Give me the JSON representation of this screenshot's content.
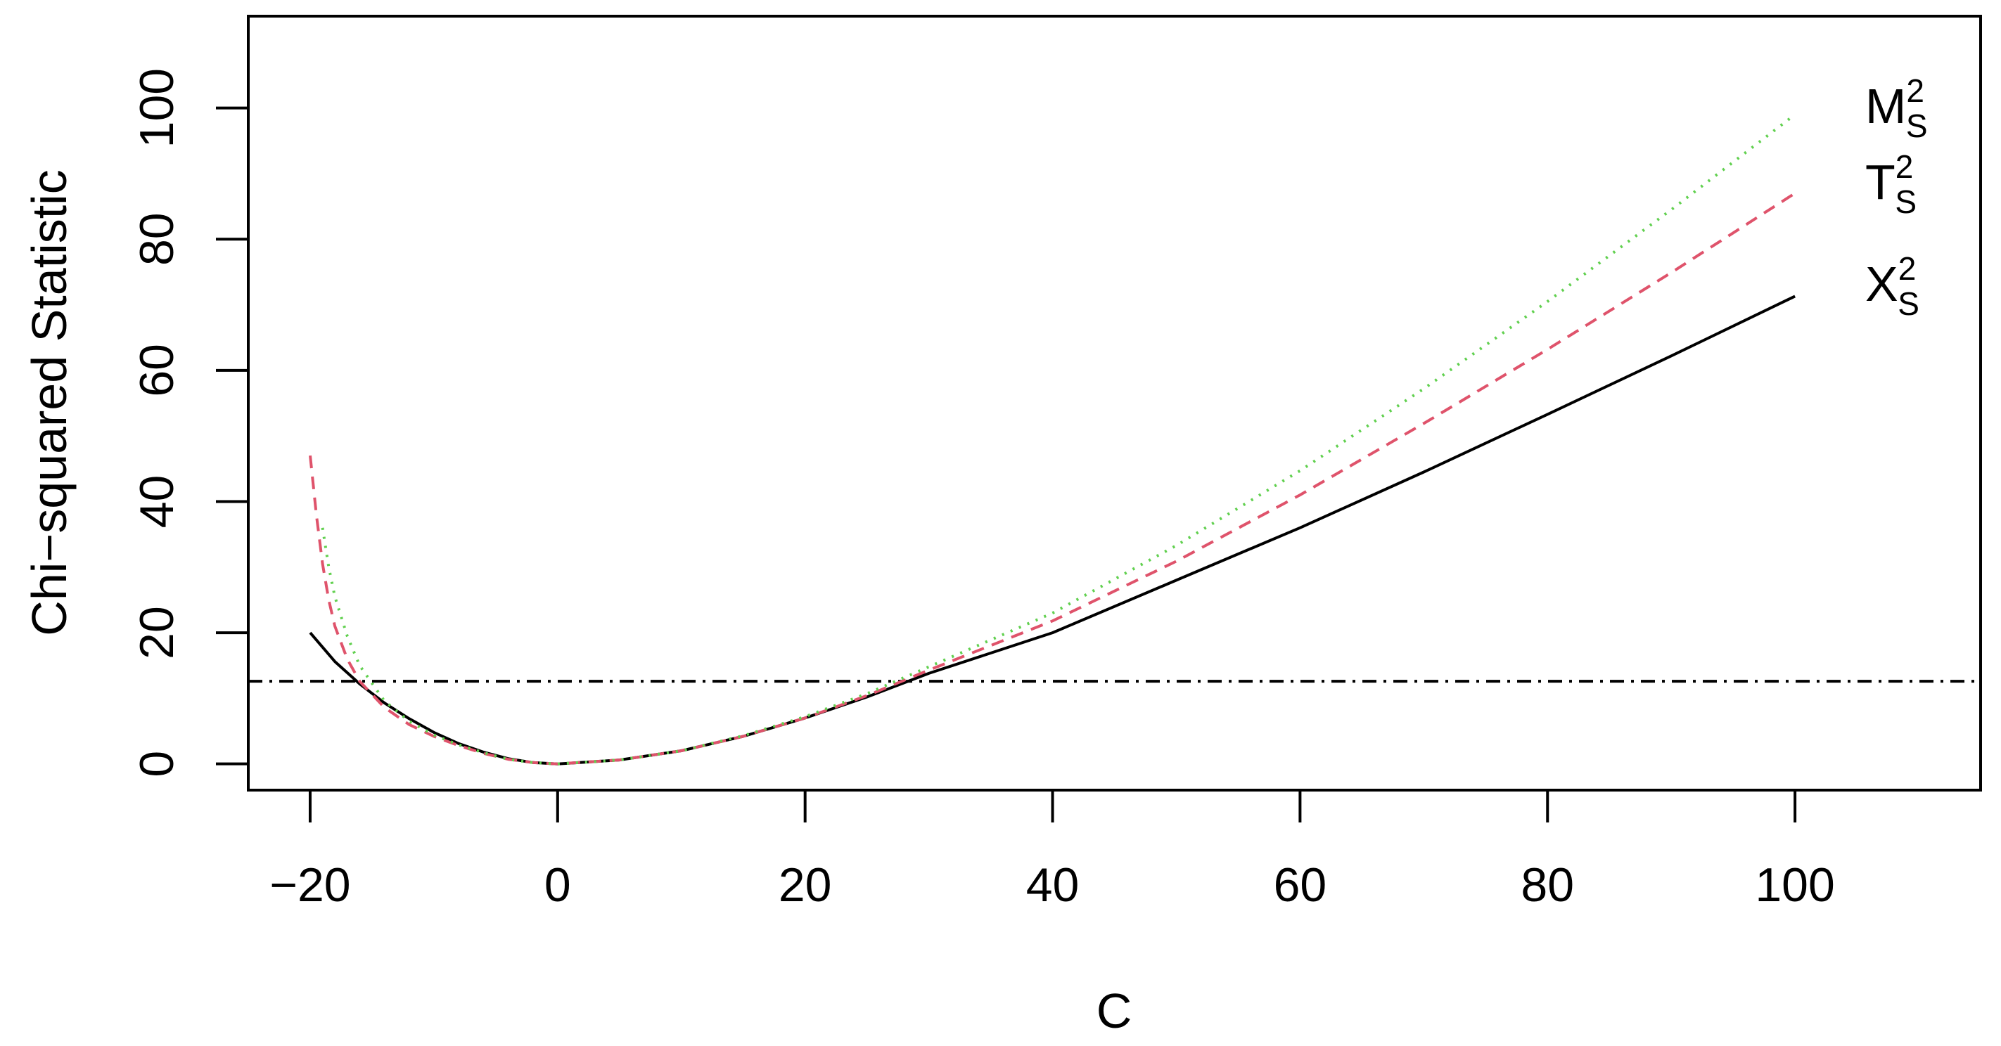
{
  "chart_data": {
    "type": "line",
    "title": "",
    "xlabel": "C",
    "ylabel": "Chi−squared Statistic",
    "xlim": [
      -25,
      115
    ],
    "ylim": [
      -4,
      114
    ],
    "xticks": [
      -20,
      0,
      20,
      40,
      60,
      80,
      100
    ],
    "xtick_labels": [
      "−20",
      "0",
      "20",
      "40",
      "60",
      "80",
      "100"
    ],
    "yticks": [
      0,
      20,
      40,
      60,
      80,
      100
    ],
    "ytick_labels": [
      "0",
      "20",
      "40",
      "60",
      "80",
      "100"
    ],
    "grid": false,
    "legend": "direct labels at right end of lines",
    "reference_line": {
      "y": 12.6,
      "style": "dot-dash",
      "color": "#000000"
    },
    "series": [
      {
        "name": "X",
        "label_sup": "2",
        "label_sub": "S",
        "color": "#000000",
        "style": "solid",
        "x": [
          -20,
          -18,
          -16,
          -14,
          -12,
          -10,
          -8,
          -6,
          -4,
          -2,
          0,
          5,
          10,
          15,
          20,
          25,
          30,
          40,
          50,
          60,
          70,
          80,
          90,
          100
        ],
        "y": [
          20.0,
          15.6,
          12.2,
          9.3,
          6.9,
          4.8,
          3.1,
          1.8,
          0.8,
          0.2,
          0,
          0.6,
          2.0,
          4.2,
          7.0,
          10.2,
          13.8,
          20.0,
          28.0,
          36.0,
          44.5,
          53.3,
          62.2,
          71.3
        ]
      },
      {
        "name": "T",
        "label_sup": "2",
        "label_sub": "S",
        "color": "#df536b",
        "style": "dashed",
        "x": [
          -20,
          -19.5,
          -19,
          -18.5,
          -18,
          -17,
          -16,
          -14,
          -12,
          -10,
          -8,
          -6,
          -4,
          -2,
          0,
          5,
          10,
          15,
          20,
          25,
          30,
          40,
          50,
          60,
          70,
          80,
          90,
          100
        ],
        "y": [
          47.0,
          38.0,
          30.5,
          25.0,
          21.0,
          16.0,
          12.6,
          8.6,
          6.0,
          4.2,
          2.8,
          1.6,
          0.7,
          0.2,
          0,
          0.6,
          2.0,
          4.2,
          7.0,
          10.4,
          14.3,
          21.8,
          30.9,
          41.0,
          51.9,
          63.2,
          74.9,
          87.0
        ]
      },
      {
        "name": "M",
        "label_sup": "2",
        "label_sub": "S",
        "color": "#61d04f",
        "style": "dotted",
        "x": [
          -19,
          -18.5,
          -18,
          -17,
          -16,
          -14,
          -12,
          -10,
          -8,
          -6,
          -4,
          -2,
          0,
          5,
          10,
          15,
          20,
          25,
          30,
          40,
          50,
          60,
          70,
          80,
          90,
          100
        ],
        "y": [
          36.0,
          30.0,
          25.5,
          19.5,
          15.0,
          9.6,
          6.5,
          4.4,
          2.9,
          1.7,
          0.7,
          0.2,
          0,
          0.6,
          2.0,
          4.3,
          7.2,
          10.7,
          14.8,
          23.0,
          33.3,
          44.7,
          57.2,
          70.5,
          84.5,
          99.0
        ]
      }
    ]
  }
}
